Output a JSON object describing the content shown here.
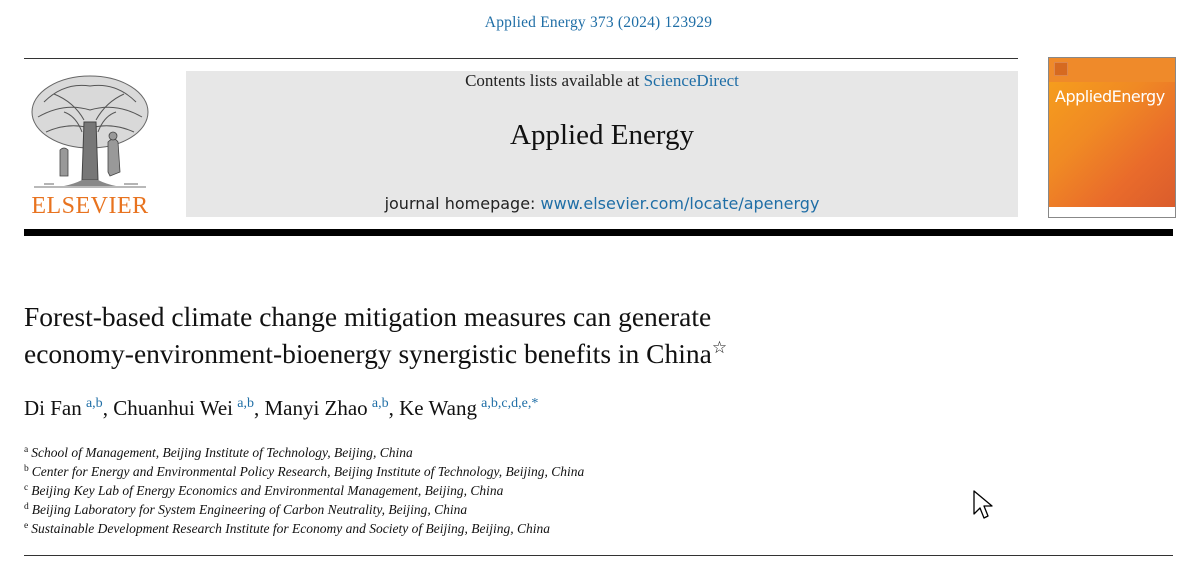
{
  "header": {
    "citation": "Applied Energy 373 (2024) 123929",
    "contents_prefix": "Contents lists available at ",
    "contents_link": "ScienceDirect",
    "journal_title": "Applied Energy",
    "homepage_prefix": "journal homepage: ",
    "homepage_link": "www.elsevier.com/locate/apenergy",
    "publisher_logo_text": "ELSEVIER",
    "cover_title": "AppliedEnergy"
  },
  "article": {
    "title_line1": "Forest-based climate change mitigation measures can generate",
    "title_line2": "economy-environment-bioenergy synergistic benefits in China",
    "title_mark": "☆",
    "authors": [
      {
        "name": "Di Fan",
        "affil": "a,b"
      },
      {
        "name": "Chuanhui Wei",
        "affil": "a,b"
      },
      {
        "name": "Manyi Zhao",
        "affil": "a,b"
      },
      {
        "name": "Ke Wang",
        "affil": "a,b,c,d,e,*"
      }
    ],
    "affiliations": [
      {
        "mark": "a",
        "text": "School of Management, Beijing Institute of Technology, Beijing, China"
      },
      {
        "mark": "b",
        "text": "Center for Energy and Environmental Policy Research, Beijing Institute of Technology, Beijing, China"
      },
      {
        "mark": "c",
        "text": "Beijing Key Lab of Energy Economics and Environmental Management, Beijing, China"
      },
      {
        "mark": "d",
        "text": "Beijing Laboratory for System Engineering of Carbon Neutrality, Beijing, China"
      },
      {
        "mark": "e",
        "text": "Sustainable Development Research Institute for Economy and Society of Beijing, Beijing, China"
      }
    ]
  },
  "colors": {
    "link": "#1f6ea6",
    "elsevier_orange": "#e8731f",
    "masthead_bg": "#e7e7e7"
  }
}
